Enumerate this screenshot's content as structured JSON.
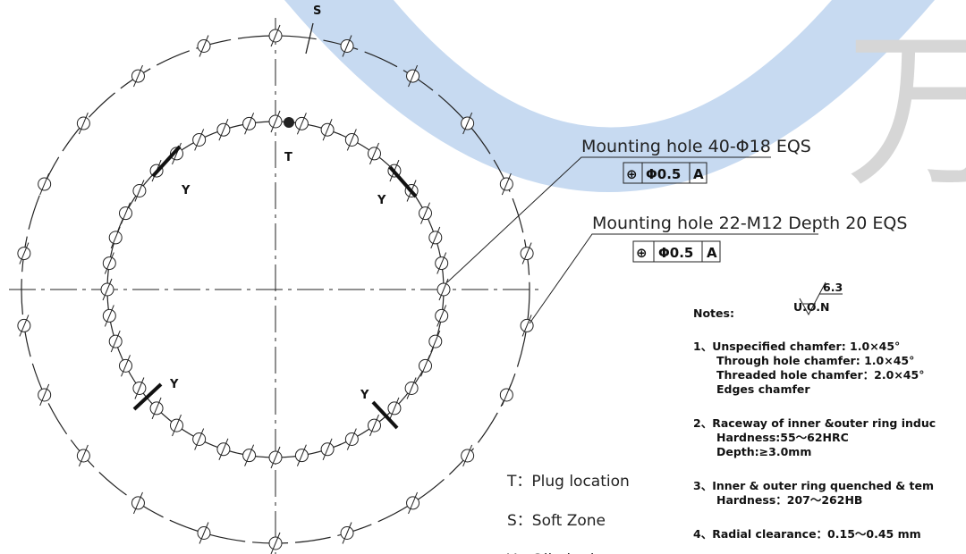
{
  "watermark": "万",
  "drawing": {
    "soft_zone_mark": "S",
    "plug_mark": "T",
    "oil_nipple_marks": [
      "Y",
      "Y",
      "Y",
      "Y"
    ]
  },
  "callouts": [
    {
      "text": "Mounting hole 40-Φ18 EQS",
      "frame": [
        "⊕",
        "Φ0.5",
        "A"
      ]
    },
    {
      "text": "Mounting hole 22-M12 Depth 20 EQS",
      "frame": [
        "⊕",
        "Φ0.5",
        "A"
      ]
    }
  ],
  "notes": {
    "title": "Notes:",
    "uon": "U.O.N",
    "roughness": "6.3",
    "items": [
      [
        "1、Unspecified chamfer: 1.0×45°",
        "Through hole chamfer: 1.0×45°",
        "Threaded hole chamfer：2.0×45°",
        "Edges chamfer"
      ],
      [
        "2、Raceway of inner &outer ring induc",
        "Hardness:55～62HRC",
        "Depth:≥3.0mm"
      ],
      [
        "3、Inner & outer ring quenched & tem",
        "Hardness：207～262HB"
      ],
      [
        "4、Radial clearance：0.15～0.45 mm"
      ]
    ]
  },
  "legend": [
    "T：Plug location",
    "S：Soft Zone",
    "Y：Oil nipple"
  ]
}
